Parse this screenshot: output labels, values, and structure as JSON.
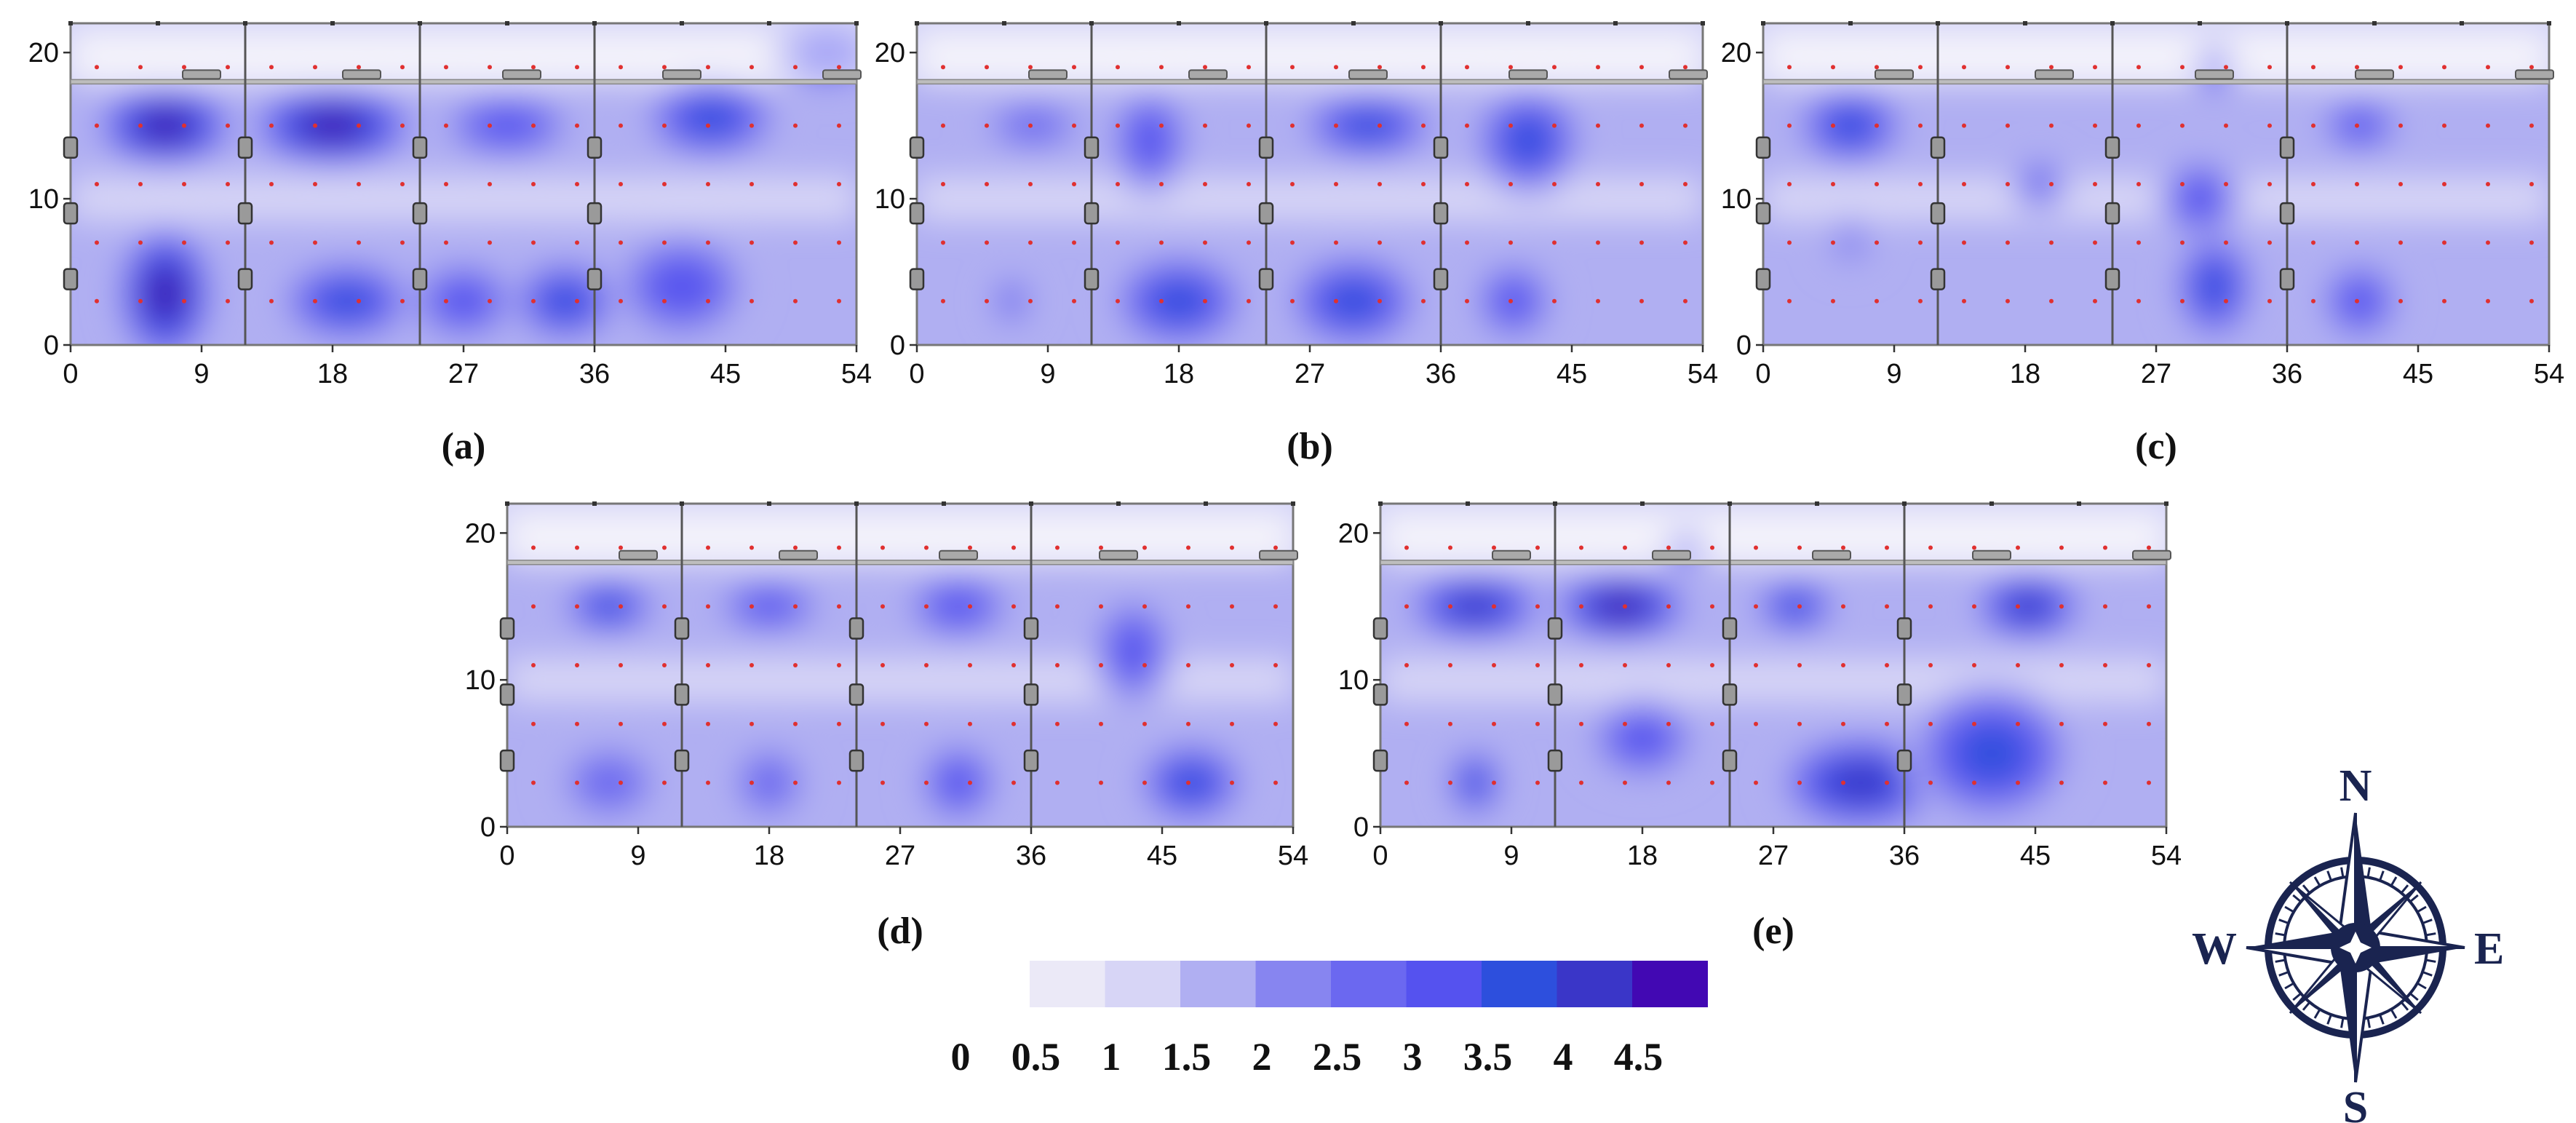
{
  "chart_data": [
    {
      "type": "heatmap",
      "panel_label": "(a)",
      "x_ticks": [
        0,
        9,
        18,
        27,
        36,
        45,
        54
      ],
      "y_ticks": [
        0,
        10,
        20
      ],
      "xlim": [
        0,
        54
      ],
      "ylim": [
        0,
        22
      ],
      "hotspots": [
        {
          "x": 6.5,
          "y": 15,
          "rx": 5,
          "ry": 3,
          "value": 4.0
        },
        {
          "x": 18,
          "y": 15,
          "rx": 6,
          "ry": 3,
          "value": 4.0
        },
        {
          "x": 30,
          "y": 15,
          "rx": 5,
          "ry": 2.5,
          "value": 2.5
        },
        {
          "x": 44,
          "y": 15.5,
          "rx": 5,
          "ry": 3,
          "value": 3.0
        },
        {
          "x": 52,
          "y": 20,
          "rx": 4,
          "ry": 2.5,
          "value": 2.5
        },
        {
          "x": 6.5,
          "y": 3.5,
          "rx": 3.5,
          "ry": 5,
          "value": 4.0
        },
        {
          "x": 19,
          "y": 3,
          "rx": 5,
          "ry": 3,
          "value": 3.0
        },
        {
          "x": 27,
          "y": 3,
          "rx": 4,
          "ry": 3,
          "value": 2.5
        },
        {
          "x": 34,
          "y": 3,
          "rx": 4,
          "ry": 3,
          "value": 3.0
        },
        {
          "x": 42,
          "y": 4,
          "rx": 5,
          "ry": 4,
          "value": 2.5
        }
      ]
    },
    {
      "type": "heatmap",
      "panel_label": "(b)",
      "x_ticks": [
        0,
        9,
        18,
        27,
        36,
        45,
        54
      ],
      "y_ticks": [
        0,
        10,
        20
      ],
      "xlim": [
        0,
        54
      ],
      "ylim": [
        0,
        22
      ],
      "hotspots": [
        {
          "x": 8,
          "y": 15,
          "rx": 4,
          "ry": 2,
          "value": 2.0
        },
        {
          "x": 16,
          "y": 14,
          "rx": 3,
          "ry": 4,
          "value": 2.5
        },
        {
          "x": 31,
          "y": 15,
          "rx": 5,
          "ry": 2.5,
          "value": 3.0
        },
        {
          "x": 42,
          "y": 14,
          "rx": 4,
          "ry": 4,
          "value": 3.0
        },
        {
          "x": 6.5,
          "y": 3,
          "rx": 1.5,
          "ry": 2,
          "value": 2.0
        },
        {
          "x": 18,
          "y": 3,
          "rx": 5,
          "ry": 3.5,
          "value": 3.0
        },
        {
          "x": 30,
          "y": 3,
          "rx": 5,
          "ry": 3.5,
          "value": 3.0
        },
        {
          "x": 41,
          "y": 3,
          "rx": 3,
          "ry": 3,
          "value": 2.5
        }
      ]
    },
    {
      "type": "heatmap",
      "panel_label": "(c)",
      "x_ticks": [
        0,
        9,
        18,
        27,
        36,
        45,
        54
      ],
      "y_ticks": [
        0,
        10,
        20
      ],
      "xlim": [
        0,
        54
      ],
      "ylim": [
        0,
        22
      ],
      "hotspots": [
        {
          "x": 6,
          "y": 15,
          "rx": 4,
          "ry": 3,
          "value": 3.0
        },
        {
          "x": 31,
          "y": 19,
          "rx": 1.5,
          "ry": 2,
          "value": 2.5
        },
        {
          "x": 30,
          "y": 10,
          "rx": 3,
          "ry": 3,
          "value": 2.5
        },
        {
          "x": 31,
          "y": 4,
          "rx": 3,
          "ry": 4,
          "value": 3.0
        },
        {
          "x": 41,
          "y": 15,
          "rx": 3,
          "ry": 2,
          "value": 2.5
        },
        {
          "x": 41,
          "y": 3,
          "rx": 3,
          "ry": 3,
          "value": 2.5
        },
        {
          "x": 19,
          "y": 11,
          "rx": 2,
          "ry": 2,
          "value": 2.0
        },
        {
          "x": 6,
          "y": 7,
          "rx": 2,
          "ry": 2,
          "value": 1.5
        }
      ]
    },
    {
      "type": "heatmap",
      "panel_label": "(d)",
      "x_ticks": [
        0,
        9,
        18,
        27,
        36,
        45,
        54
      ],
      "y_ticks": [
        0,
        10,
        20
      ],
      "xlim": [
        0,
        54
      ],
      "ylim": [
        0,
        22
      ],
      "hotspots": [
        {
          "x": 7,
          "y": 15,
          "rx": 3.5,
          "ry": 2,
          "value": 3.0
        },
        {
          "x": 18,
          "y": 15,
          "rx": 4,
          "ry": 2,
          "value": 2.5
        },
        {
          "x": 31,
          "y": 15,
          "rx": 4,
          "ry": 2.5,
          "value": 2.5
        },
        {
          "x": 43,
          "y": 12,
          "rx": 3,
          "ry": 4,
          "value": 2.5
        },
        {
          "x": 7,
          "y": 3,
          "rx": 4,
          "ry": 3,
          "value": 2.0
        },
        {
          "x": 18,
          "y": 3,
          "rx": 3,
          "ry": 3,
          "value": 2.0
        },
        {
          "x": 31,
          "y": 3,
          "rx": 3,
          "ry": 3,
          "value": 2.5
        },
        {
          "x": 47,
          "y": 3,
          "rx": 4,
          "ry": 3,
          "value": 3.0
        }
      ]
    },
    {
      "type": "heatmap",
      "panel_label": "(e)",
      "x_ticks": [
        0,
        9,
        18,
        27,
        36,
        45,
        54
      ],
      "y_ticks": [
        0,
        10,
        20
      ],
      "xlim": [
        0,
        54
      ],
      "ylim": [
        0,
        22
      ],
      "hotspots": [
        {
          "x": 6.5,
          "y": 15,
          "rx": 5,
          "ry": 2.5,
          "value": 3.5
        },
        {
          "x": 16.5,
          "y": 15,
          "rx": 5,
          "ry": 2.5,
          "value": 4.0
        },
        {
          "x": 28.5,
          "y": 15,
          "rx": 3,
          "ry": 2,
          "value": 3.0
        },
        {
          "x": 44.5,
          "y": 15,
          "rx": 4,
          "ry": 2.5,
          "value": 3.5
        },
        {
          "x": 21,
          "y": 19,
          "rx": 1.5,
          "ry": 1.5,
          "value": 2.5
        },
        {
          "x": 6.5,
          "y": 3,
          "rx": 2,
          "ry": 2.5,
          "value": 3.0
        },
        {
          "x": 33,
          "y": 3,
          "rx": 6,
          "ry": 3.5,
          "value": 3.5
        },
        {
          "x": 42,
          "y": 5,
          "rx": 6,
          "ry": 5,
          "value": 3.0
        },
        {
          "x": 18,
          "y": 6,
          "rx": 4,
          "ry": 3,
          "value": 2.5
        }
      ]
    }
  ],
  "legend": {
    "labels": [
      "0",
      "0.5",
      "1",
      "1.5",
      "2",
      "2.5",
      "3",
      "3.5",
      "4",
      "4.5"
    ],
    "colors": [
      "#ebe9f7",
      "#d7d5f6",
      "#b0aff2",
      "#8785f0",
      "#6b68f0",
      "#5552ef",
      "#2d4fdd",
      "#3a36c8",
      "#4208b3"
    ]
  },
  "compass": {
    "north": "N",
    "south": "S",
    "east": "E",
    "west": "W"
  }
}
